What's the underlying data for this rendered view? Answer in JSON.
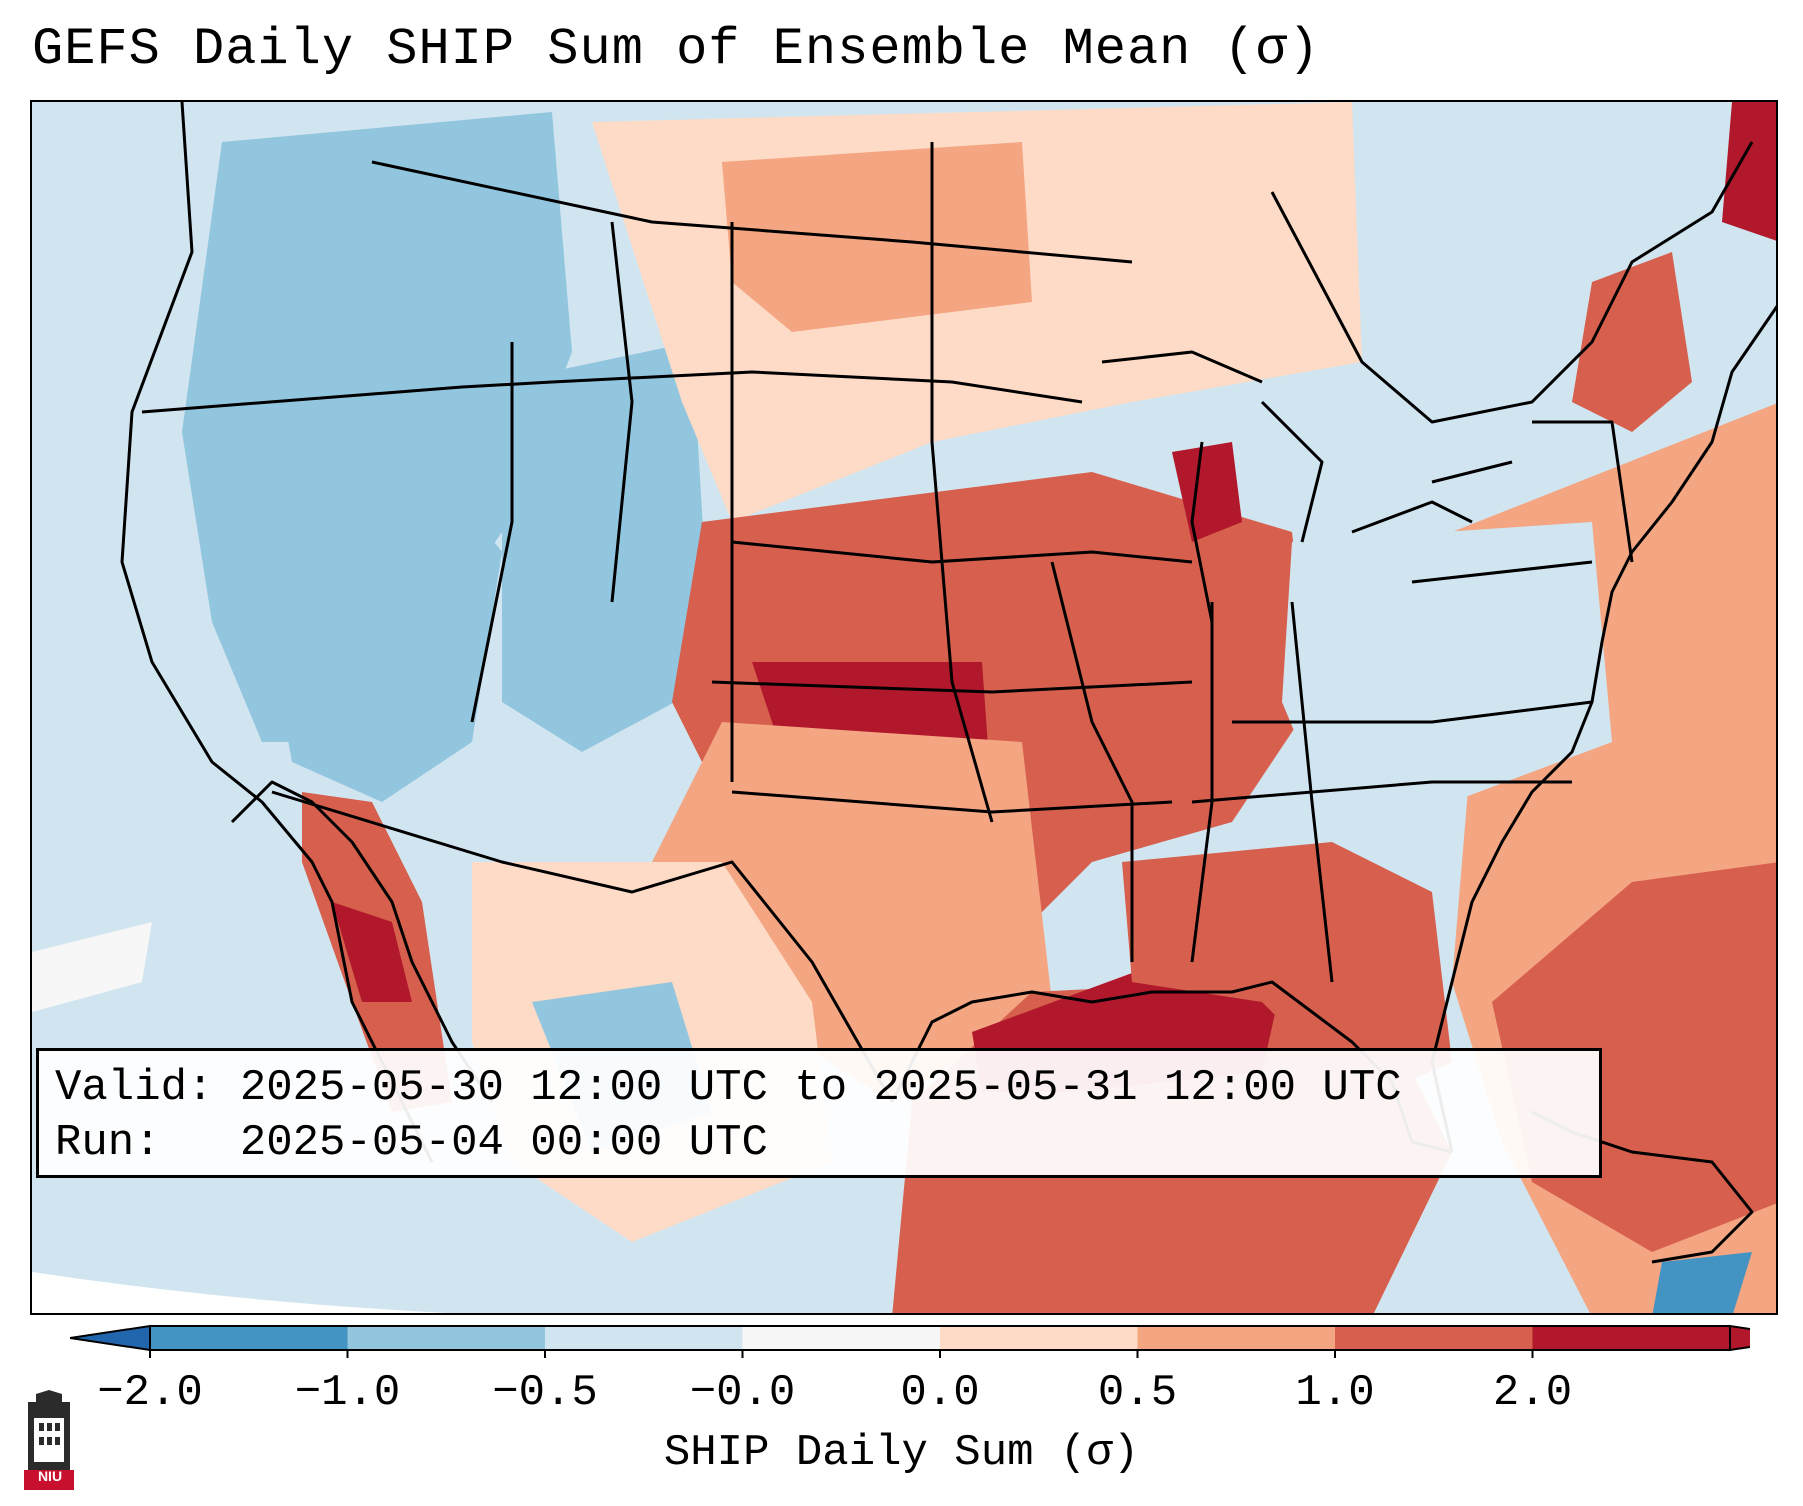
{
  "title": "GEFS Daily SHIP Sum of Ensemble Mean (σ)",
  "info": {
    "valid_label": "Valid:",
    "valid_value": "2025-05-30 12:00 UTC to 2025-05-31 12:00 UTC",
    "run_label": "Run:",
    "run_value": "2025-05-04 00:00 UTC"
  },
  "colorbar": {
    "label": "SHIP Daily Sum (σ)",
    "tick_labels": [
      "−2.0",
      "−1.0",
      "−0.5",
      "−0.0",
      "0.0",
      "0.5",
      "1.0",
      "2.0"
    ],
    "bin_colors": [
      "#4393c3",
      "#92c5de",
      "#d1e5f0",
      "#f7f7f7",
      "#fddbc7",
      "#f4a582",
      "#d6604d",
      "#b2182b"
    ],
    "extend_low_color": "#2166ac",
    "extend_high_color": "#b2182b"
  },
  "logo": {
    "text": "NIU",
    "icon": "university-building-icon",
    "color": "#c8102e"
  },
  "map": {
    "projection": "Lambert conformal over the continental United States",
    "domain_note": "Contiguous US, southern Canada, northern Mexico, Gulf of Mexico",
    "outline_color": "#000000",
    "field_summary": {
      "positive_anomaly_regions": [
        "Central and Southern Plains",
        "Midwest",
        "Gulf of Mexico",
        "Southeast",
        "Western Atlantic",
        "Northern Maine"
      ],
      "negative_anomaly_regions": [
        "Pacific Northwest",
        "Great Basin",
        "Rocky Mountains",
        "Northeast interior",
        "Southwest Mexico"
      ]
    }
  }
}
